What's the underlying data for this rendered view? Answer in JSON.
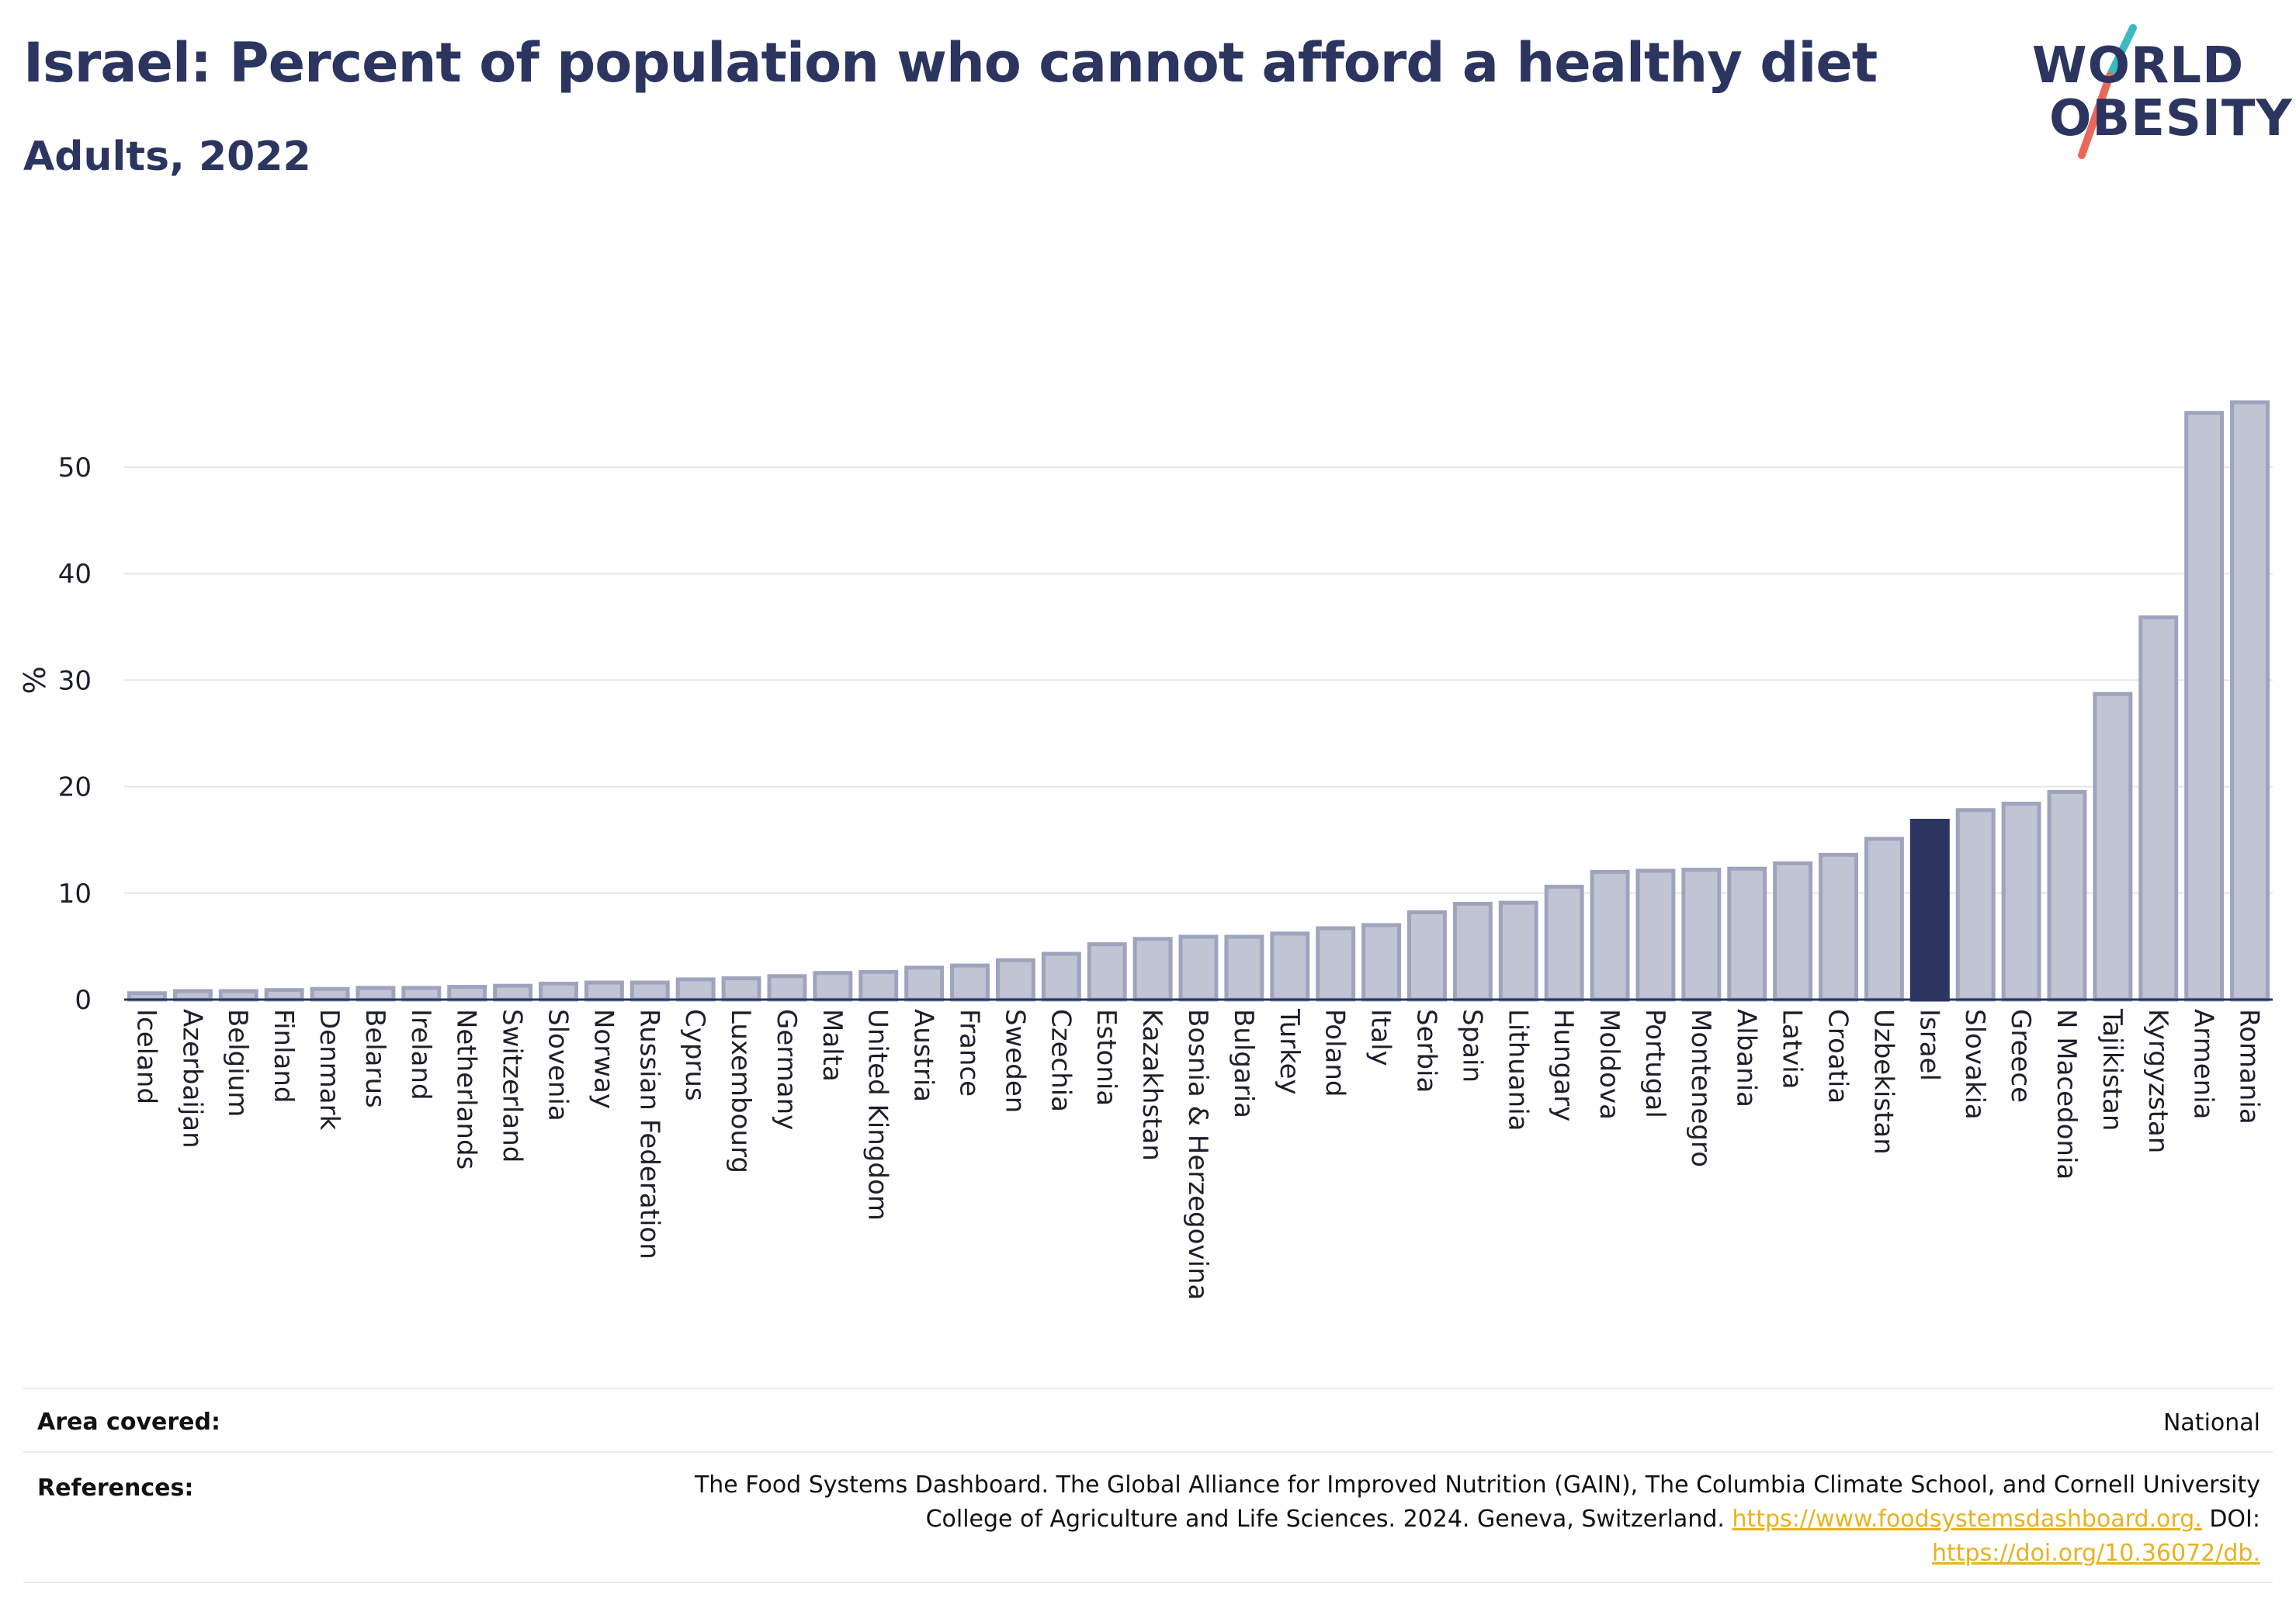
{
  "header": {
    "title": "Israel: Percent of population who cannot afford a healthy diet",
    "subtitle": "Adults, 2022"
  },
  "logo": {
    "line1": "WORLD",
    "line2": "OBESITY",
    "colors": {
      "text": "#2b3560",
      "slash_teal": "#3bb9c2",
      "slash_coral": "#e8695a"
    }
  },
  "colors": {
    "bar_default": "#c0c4d3",
    "bar_border": "#9ea4bd",
    "bar_highlight": "#2b3560",
    "grid": "#e6e6e6",
    "axis": "#2b3560"
  },
  "chart_data": {
    "type": "bar",
    "ylabel": "%",
    "ylim": [
      0,
      57
    ],
    "yticks": [
      0,
      10,
      20,
      30,
      40,
      50
    ],
    "highlight": "Israel",
    "grid": true,
    "categories": [
      "Iceland",
      "Azerbaijan",
      "Belgium",
      "Finland",
      "Denmark",
      "Belarus",
      "Ireland",
      "Netherlands",
      "Switzerland",
      "Slovenia",
      "Norway",
      "Russian Federation",
      "Cyprus",
      "Luxembourg",
      "Germany",
      "Malta",
      "United Kingdom",
      "Austria",
      "France",
      "Sweden",
      "Czechia",
      "Estonia",
      "Kazakhstan",
      "Bosnia & Herzegovina",
      "Bulgaria",
      "Turkey",
      "Poland",
      "Italy",
      "Serbia",
      "Spain",
      "Lithuania",
      "Hungary",
      "Moldova",
      "Portugal",
      "Montenegro",
      "Albania",
      "Latvia",
      "Croatia",
      "Uzbekistan",
      "Israel",
      "Slovakia",
      "Greece",
      "N Macedonia",
      "Tajikistan",
      "Kyrgyzstan",
      "Armenia",
      "Romania"
    ],
    "values": [
      0.6,
      0.8,
      0.8,
      0.9,
      1.0,
      1.1,
      1.1,
      1.2,
      1.3,
      1.5,
      1.6,
      1.6,
      1.9,
      2.0,
      2.2,
      2.5,
      2.6,
      3.0,
      3.2,
      3.7,
      4.3,
      5.2,
      5.7,
      5.9,
      5.9,
      6.2,
      6.7,
      7.0,
      8.2,
      9.0,
      9.1,
      10.6,
      12.0,
      12.1,
      12.2,
      12.3,
      12.8,
      13.6,
      15.1,
      16.8,
      17.8,
      18.4,
      19.5,
      28.7,
      35.9,
      55.1,
      56.1
    ]
  },
  "footer": {
    "area_label": "Area covered:",
    "area_value": "National",
    "references_label": "References:",
    "references_line1": "The Food Systems Dashboard. The Global Alliance for Improved Nutrition (GAIN), The Columbia Climate School, and Cornell University",
    "references_line2": "College of Agriculture and Life Sciences. 2024. Geneva, Switzerland.",
    "references_link1": "https://www.foodsystemsdashboard.org.",
    "references_doi_label": "DOI:",
    "references_link2": "https://doi.org/10.36072/db."
  }
}
